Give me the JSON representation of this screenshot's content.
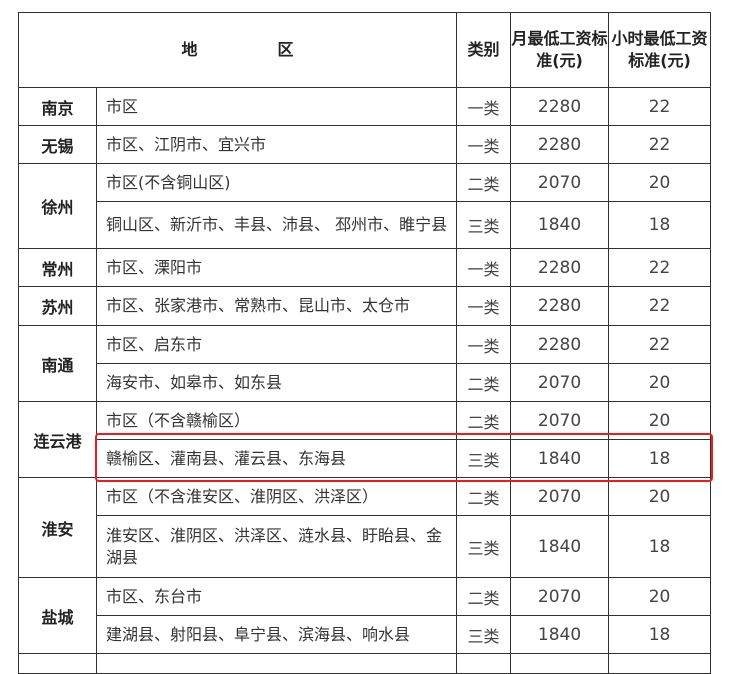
{
  "header": {
    "region": "地　　　　　区",
    "category": "类别",
    "monthly": "月最低工资标准(元)",
    "hourly": "小时最低工资标准(元)"
  },
  "rows": [
    {
      "city": "南京",
      "span": 1,
      "area": "市区",
      "category": "一类",
      "monthly": "2280",
      "hourly": "22"
    },
    {
      "city": "无锡",
      "span": 1,
      "area": "市区、江阴市、宜兴市",
      "category": "一类",
      "monthly": "2280",
      "hourly": "22"
    },
    {
      "city": "徐州",
      "span": 2,
      "area": "市区(不含铜山区)",
      "category": "二类",
      "monthly": "2070",
      "hourly": "20"
    },
    {
      "city": null,
      "area": "铜山区、新沂市、丰县、沛县、 邳州市、睢宁县",
      "category": "三类",
      "monthly": "1840",
      "hourly": "18",
      "tall": true
    },
    {
      "city": "常州",
      "span": 1,
      "area": "市区、溧阳市",
      "category": "一类",
      "monthly": "2280",
      "hourly": "22"
    },
    {
      "city": "苏州",
      "span": 1,
      "area": "市区、张家港市、常熟市、昆山市、太仓市",
      "category": "一类",
      "monthly": "2280",
      "hourly": "22"
    },
    {
      "city": "南通",
      "span": 2,
      "area": "市区、启东市",
      "category": "一类",
      "monthly": "2280",
      "hourly": "22"
    },
    {
      "city": null,
      "area": "海安市、如皋市、如东县",
      "category": "二类",
      "monthly": "2070",
      "hourly": "20"
    },
    {
      "city": "连云港",
      "span": 2,
      "area": "市区（不含赣榆区）",
      "category": "二类",
      "monthly": "2070",
      "hourly": "20"
    },
    {
      "city": null,
      "area": "赣榆区、灌南县、灌云县、东海县",
      "category": "三类",
      "monthly": "1840",
      "hourly": "18",
      "highlighted": true
    },
    {
      "city": "淮安",
      "span": 2,
      "area": "市区（不含淮安区、淮阴区、洪泽区）",
      "category": "二类",
      "monthly": "2070",
      "hourly": "20"
    },
    {
      "city": null,
      "area": "淮安区、淮阴区、洪泽区、涟水县、盱眙县、金湖县",
      "category": "三类",
      "monthly": "1840",
      "hourly": "18",
      "tall": true
    },
    {
      "city": "盐城",
      "span": 2,
      "area": "市区、东台市",
      "category": "二类",
      "monthly": "2070",
      "hourly": "20"
    },
    {
      "city": null,
      "area": "建湖县、射阳县、阜宁县、滨海县、响水县",
      "category": "三类",
      "monthly": "1840",
      "hourly": "18"
    }
  ],
  "highlight_color": "#f01c1c"
}
